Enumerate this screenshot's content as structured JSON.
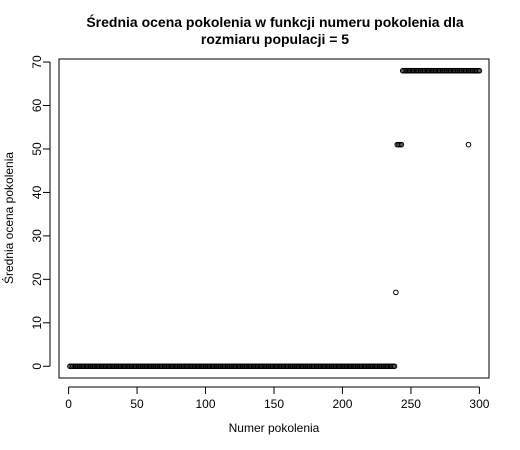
{
  "chart_data": {
    "type": "scatter",
    "title": "Średnia ocena pokolenia w funkcji numeru pokolenia dla",
    "subtitle": "rozmiaru populacji =  5",
    "xlabel": "Numer pokolenia",
    "ylabel": "Średnia ocena pokolenia",
    "xlim": [
      -7,
      307
    ],
    "ylim": [
      -2.7,
      70.7
    ],
    "x_ticks": [
      0,
      50,
      100,
      150,
      200,
      250,
      300
    ],
    "y_ticks": [
      0,
      10,
      20,
      30,
      40,
      50,
      60,
      70
    ],
    "grid": false,
    "legend": "none",
    "marker": "open-circle",
    "point_color": "#000000",
    "segments": [
      {
        "x_from": 1,
        "x_to": 238,
        "y": 0
      },
      {
        "x_from": 244,
        "x_to": 300,
        "y": 68
      }
    ],
    "points": [
      {
        "x": 239,
        "y": 17
      },
      {
        "x": 240,
        "y": 51
      },
      {
        "x": 241,
        "y": 51
      },
      {
        "x": 242,
        "y": 51
      },
      {
        "x": 243,
        "y": 51
      },
      {
        "x": 292,
        "y": 51
      }
    ]
  }
}
